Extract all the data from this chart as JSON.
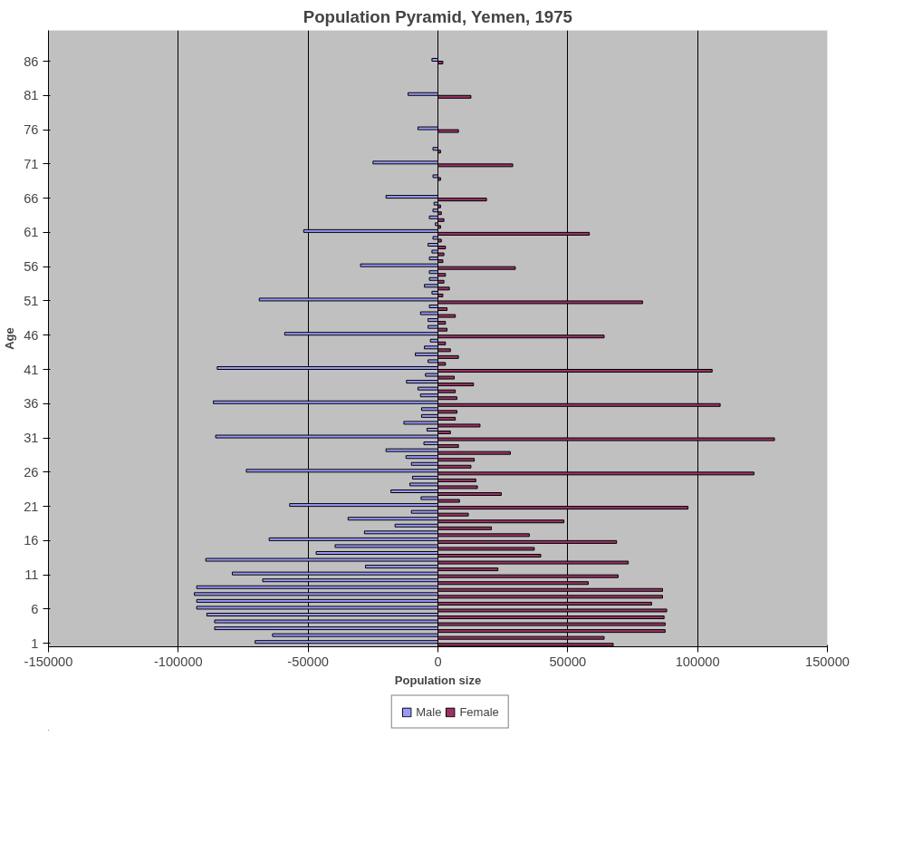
{
  "chart_data": {
    "type": "bar",
    "orientation": "horizontal",
    "title": "Population Pyramid, Yemen, 1975",
    "xlabel": "Population size",
    "ylabel": "Age",
    "categories": [
      null,
      null,
      null,
      null,
      "86",
      null,
      null,
      null,
      null,
      "81",
      null,
      null,
      null,
      null,
      "76",
      null,
      null,
      null,
      null,
      "71",
      null,
      null,
      null,
      null,
      "66",
      null,
      null,
      null,
      null,
      "61",
      null,
      null,
      null,
      null,
      "56",
      null,
      null,
      null,
      null,
      "51",
      null,
      null,
      null,
      null,
      "46",
      null,
      null,
      null,
      null,
      "41",
      null,
      null,
      null,
      null,
      "36",
      null,
      null,
      null,
      null,
      "31",
      null,
      null,
      null,
      null,
      "26",
      null,
      null,
      null,
      null,
      "21",
      null,
      null,
      null,
      null,
      "16",
      null,
      null,
      null,
      null,
      "11",
      null,
      null,
      null,
      null,
      "6",
      null,
      null,
      null,
      null,
      "1"
    ],
    "xlim": [
      -150000,
      150000
    ],
    "xticks": [
      -150000,
      -100000,
      -50000,
      0,
      50000,
      100000,
      150000
    ],
    "grid": "x",
    "legend": "bottom",
    "series": [
      {
        "name": "Male",
        "color": "#9999ff",
        "values": [
          null,
          null,
          null,
          null,
          -2300,
          null,
          null,
          null,
          null,
          -11500,
          null,
          null,
          null,
          null,
          -7700,
          null,
          null,
          -1900,
          null,
          -25000,
          null,
          -1900,
          null,
          null,
          -20000,
          -1500,
          -1900,
          -3300,
          -1000,
          -51700,
          -1900,
          -3800,
          -2300,
          -3300,
          -29800,
          -3300,
          -3300,
          -5200,
          -2300,
          -68800,
          -3300,
          -6700,
          -3800,
          -3800,
          -59000,
          -2900,
          -5200,
          -8700,
          -3800,
          -85000,
          -4800,
          -12100,
          -7700,
          -6700,
          -86500,
          -6300,
          -6300,
          -13100,
          -4200,
          -85600,
          -5400,
          -20000,
          -12300,
          -10200,
          -73800,
          -9800,
          -10800,
          -18100,
          -6500,
          -57100,
          -10200,
          -34600,
          -16500,
          -28300,
          -65000,
          -39600,
          -46900,
          -89400,
          -27900,
          -79200,
          -67500,
          -92900,
          -93800,
          -92900,
          -92900,
          -89000,
          -86000,
          -86000,
          -63700,
          -70400
        ]
      },
      {
        "name": "Female",
        "color": "#993366",
        "values": [
          null,
          null,
          null,
          null,
          1900,
          null,
          null,
          null,
          null,
          12700,
          null,
          null,
          null,
          null,
          7900,
          null,
          null,
          1000,
          null,
          28800,
          null,
          1000,
          null,
          null,
          18700,
          1000,
          1300,
          2300,
          1000,
          58300,
          1300,
          2900,
          2300,
          1900,
          29800,
          2900,
          2300,
          4400,
          1900,
          78800,
          3500,
          6700,
          2900,
          3500,
          64000,
          2900,
          4800,
          7900,
          2900,
          105600,
          6300,
          13700,
          6700,
          7300,
          108700,
          7300,
          6700,
          16200,
          4800,
          129600,
          7900,
          27900,
          14000,
          12700,
          121700,
          14600,
          15200,
          24400,
          8300,
          96300,
          11700,
          48500,
          20600,
          35200,
          68800,
          37100,
          39600,
          73300,
          23100,
          69400,
          57900,
          86500,
          86500,
          82300,
          88100,
          87100,
          87500,
          87500,
          64000,
          67500
        ]
      }
    ]
  }
}
